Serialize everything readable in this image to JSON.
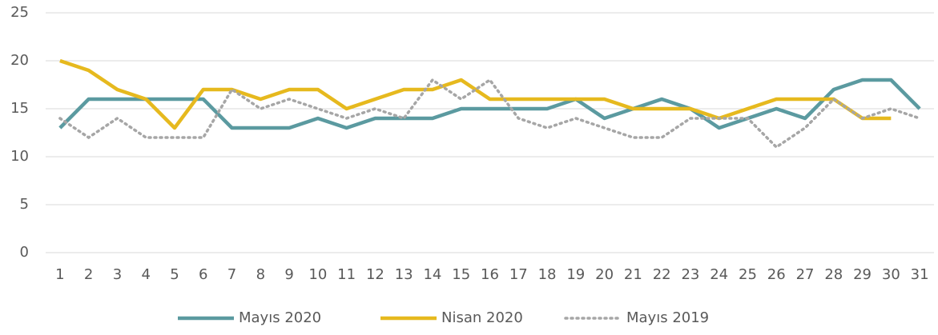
{
  "chart_data": {
    "type": "line",
    "categories": [
      "1",
      "2",
      "3",
      "4",
      "5",
      "6",
      "7",
      "8",
      "9",
      "10",
      "11",
      "12",
      "13",
      "14",
      "15",
      "16",
      "17",
      "18",
      "19",
      "20",
      "21",
      "22",
      "23",
      "24",
      "25",
      "26",
      "27",
      "28",
      "29",
      "30",
      "31"
    ],
    "series": [
      {
        "name": "Mayıs 2020",
        "color": "#5b9aa0",
        "dash": "solid",
        "values": [
          13,
          16,
          16,
          16,
          16,
          16,
          13,
          13,
          13,
          14,
          13,
          14,
          14,
          14,
          15,
          15,
          15,
          15,
          16,
          14,
          15,
          16,
          15,
          13,
          14,
          15,
          14,
          17,
          18,
          18,
          15
        ]
      },
      {
        "name": "Nisan 2020",
        "color": "#e6b91e",
        "dash": "solid",
        "values": [
          20,
          19,
          17,
          16,
          13,
          17,
          17,
          16,
          17,
          17,
          15,
          16,
          17,
          17,
          18,
          16,
          16,
          16,
          16,
          16,
          15,
          15,
          15,
          14,
          15,
          16,
          16,
          16,
          14,
          14,
          null
        ]
      },
      {
        "name": "Mayıs 2019",
        "color": "#a6a6a6",
        "dash": "dotted",
        "values": [
          14,
          12,
          14,
          12,
          12,
          12,
          17,
          15,
          16,
          15,
          14,
          15,
          14,
          18,
          16,
          18,
          14,
          13,
          14,
          13,
          12,
          12,
          14,
          14,
          14,
          11,
          13,
          16,
          14,
          15,
          14
        ]
      }
    ],
    "ylim": [
      0,
      25
    ],
    "yticks": [
      0,
      5,
      10,
      15,
      20,
      25
    ],
    "grid": true,
    "legend": "bottom"
  }
}
